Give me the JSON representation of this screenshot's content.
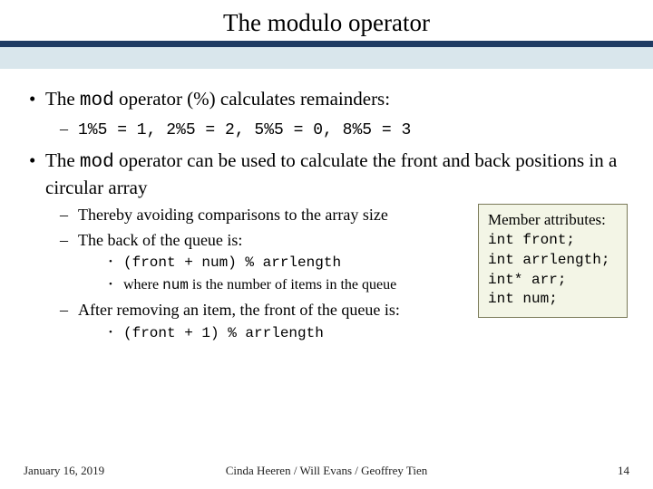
{
  "title": "The modulo operator",
  "bar_colors": {
    "dark": "#1f3b63",
    "light": "#d9e6ec"
  },
  "bullet1": {
    "pre": "The ",
    "mono": "mod",
    "post": " operator (%) calculates remainders:"
  },
  "bullet1_sub": "1%5 = 1, 2%5 = 2, 5%5 = 0, 8%5 = 3",
  "bullet2": {
    "pre": "The ",
    "mono": "mod",
    "post": " operator can be used to calculate the front and back positions in a circular array"
  },
  "bullet2_sub1": "Thereby avoiding comparisons to the array size",
  "bullet2_sub2": "The back of the queue is:",
  "bullet2_sub2_a": "(front + num) % arrlength",
  "bullet2_sub2_b": {
    "pre": "where ",
    "mono": "num",
    "post": " is the number of items in the queue"
  },
  "bullet2_sub3": "After removing an item, the front of the queue is:",
  "bullet2_sub3_a": "(front + 1) % arrlength",
  "attr_box": {
    "heading": "Member attributes:",
    "lines": [
      "int front;",
      "int arrlength;",
      "int* arr;",
      "int num;"
    ],
    "bg": "#f3f5e6",
    "border": "#7a7a58"
  },
  "footer": {
    "date": "January 16, 2019",
    "authors": "Cinda Heeren / Will Evans / Geoffrey Tien",
    "page": "14"
  }
}
